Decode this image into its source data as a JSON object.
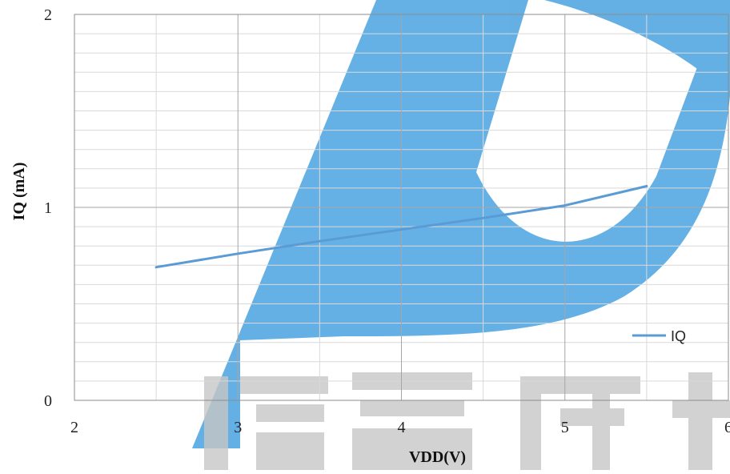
{
  "chart_data": {
    "type": "line",
    "title": "",
    "xlabel": "VDD(V)",
    "ylabel": "IQ (mA)",
    "xlim": [
      2,
      6
    ],
    "ylim": [
      0,
      2
    ],
    "x_ticks": [
      "2",
      "3",
      "4",
      "5",
      "6"
    ],
    "y_ticks": [
      "0",
      "1",
      "2"
    ],
    "x_minor_step": 0.5,
    "y_minor_step": 0.1,
    "grid": true,
    "legend_position": "bottom-right",
    "series": [
      {
        "name": "IQ",
        "color": "#5b9bd5",
        "x": [
          2.5,
          3.0,
          3.5,
          4.0,
          4.5,
          5.0,
          5.5
        ],
        "y": [
          0.69,
          0.76,
          0.825,
          0.885,
          0.945,
          1.01,
          1.11
        ]
      }
    ],
    "watermark_color": "#4aa3e0"
  }
}
